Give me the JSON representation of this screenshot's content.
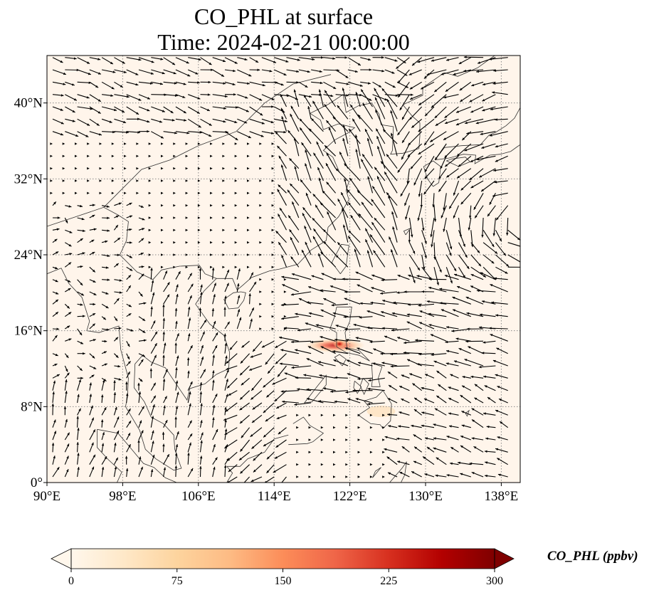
{
  "figure": {
    "title_line1": "CO_PHL at surface",
    "title_line2": "Time: 2024-02-21 00:00:00"
  },
  "map": {
    "projection": "PlateCarree",
    "lon_range": [
      90,
      140
    ],
    "lat_range": [
      0,
      45
    ],
    "ocean_fill": "#fff5eb",
    "coastline_color": "#333333",
    "gridlines": "dotted",
    "lon_ticks": [
      {
        "value": 90,
        "label": "90°E"
      },
      {
        "value": 98,
        "label": "98°E"
      },
      {
        "value": 106,
        "label": "106°E"
      },
      {
        "value": 114,
        "label": "114°E"
      },
      {
        "value": 122,
        "label": "122°E"
      },
      {
        "value": 130,
        "label": "130°E"
      },
      {
        "value": 138,
        "label": "138°E"
      }
    ],
    "lat_ticks": [
      {
        "value": 0,
        "label": "0°"
      },
      {
        "value": 8,
        "label": "8°N"
      },
      {
        "value": 16,
        "label": "16°N"
      },
      {
        "value": 24,
        "label": "24°N"
      },
      {
        "value": 32,
        "label": "32°N"
      },
      {
        "value": 40,
        "label": "40°N"
      }
    ],
    "plume": {
      "lon": 120.9,
      "lat": 14.6,
      "peak_ppbv": 300
    },
    "wind_vectors": "quiver field of surface winds (black arrows)"
  },
  "colorbar": {
    "label": "CO_PHL (ppbv)",
    "colormap": "OrRd",
    "min": 0,
    "max": 300,
    "extend": "both",
    "ticks": [
      "0",
      "75",
      "150",
      "225",
      "300"
    ],
    "colors": [
      "#fff7ec",
      "#fee8c8",
      "#fdd49e",
      "#fdbb84",
      "#fc8d59",
      "#ef6548",
      "#d7301f",
      "#b30000",
      "#7f0000"
    ]
  }
}
